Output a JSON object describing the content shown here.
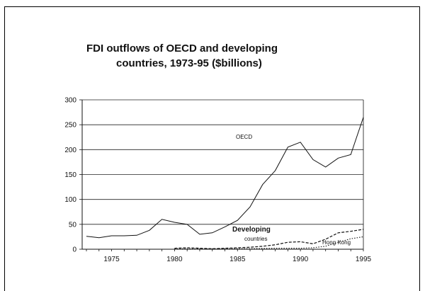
{
  "chart_data": {
    "type": "line",
    "title": "FDI outflows of OECD and developing",
    "title_line2": "countries, 1973-95 ($billions)",
    "xlabel": "",
    "ylabel": "",
    "xlim": [
      1973,
      1995
    ],
    "ylim": [
      0,
      300
    ],
    "yticks": [
      0,
      50,
      100,
      150,
      200,
      250,
      300
    ],
    "xticks": [
      1975,
      1980,
      1985,
      1990,
      1995
    ],
    "grid": "horizontal",
    "series": [
      {
        "name": "OECD",
        "style": "solid",
        "x": [
          1973,
          1974,
          1975,
          1976,
          1977,
          1978,
          1979,
          1980,
          1981,
          1982,
          1983,
          1984,
          1985,
          1986,
          1987,
          1988,
          1989,
          1990,
          1991,
          1992,
          1993,
          1994,
          1995
        ],
        "y": [
          26,
          23,
          27,
          27,
          28,
          38,
          60,
          54,
          50,
          30,
          33,
          45,
          58,
          85,
          130,
          158,
          205,
          215,
          180,
          165,
          183,
          190,
          265
        ]
      },
      {
        "name": "Developing countries",
        "style": "dashed",
        "x": [
          1980,
          1981,
          1982,
          1983,
          1984,
          1985,
          1986,
          1987,
          1988,
          1989,
          1990,
          1991,
          1992,
          1993,
          1994,
          1995
        ],
        "y": [
          2,
          3,
          2,
          1,
          2,
          3,
          4,
          6,
          9,
          14,
          15,
          11,
          20,
          33,
          36,
          40
        ]
      },
      {
        "name": "Hong Kong",
        "style": "dotted",
        "x": [
          1980,
          1981,
          1982,
          1983,
          1984,
          1985,
          1986,
          1987,
          1988,
          1989,
          1990,
          1991,
          1992,
          1993,
          1994,
          1995
        ],
        "y": [
          0.5,
          0.5,
          0.5,
          0.5,
          0.8,
          1,
          1,
          1.5,
          2,
          2,
          2,
          3,
          6,
          14,
          21,
          25
        ]
      }
    ],
    "annotations": {
      "oecd": "OECD",
      "developing_1": "Developing",
      "developing_2": "countries",
      "hongkong": "Hong Kong"
    }
  }
}
